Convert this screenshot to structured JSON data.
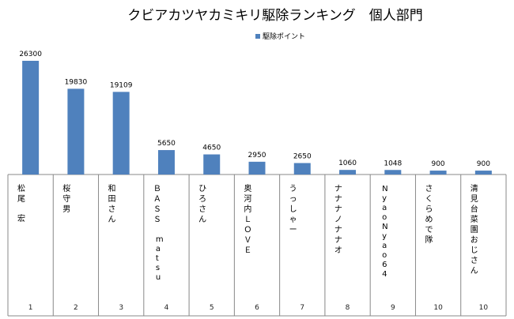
{
  "chart_data": {
    "type": "bar",
    "title": "クビアカツヤカミキリ駆除ランキング　個人部門",
    "legend": {
      "position": "top-right"
    },
    "series": [
      {
        "name": "駆除ポイント",
        "color": "#4F81BD",
        "values": [
          26300,
          19830,
          19109,
          5650,
          4650,
          2950,
          2650,
          1060,
          1048,
          900,
          900
        ]
      }
    ],
    "categories": [
      "松尾　宏",
      "桜守男",
      "和田さん",
      "ＢＡＳＳ　matsu",
      "ひろさん",
      "奥河内ＬＯＶＥ",
      "うっしゃー",
      "ナナナノナナオ",
      "NyaoNyao64",
      "さくらめで隊",
      "清見台菜園おじさん"
    ],
    "ranks": [
      "1",
      "2",
      "3",
      "4",
      "5",
      "6",
      "7",
      "8",
      "9",
      "10",
      "10"
    ],
    "ylim": [
      0,
      26300
    ],
    "grid": false
  }
}
